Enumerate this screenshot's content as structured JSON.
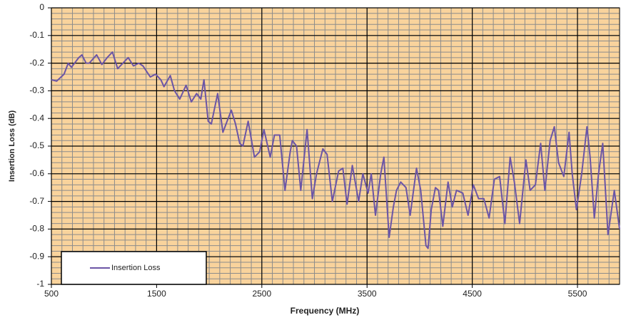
{
  "chart_data": {
    "type": "line",
    "x_label": "Frequency (MHz)",
    "y_label": "Insertion Loss (dB)",
    "xlim": [
      500,
      5900
    ],
    "xticks": [
      500,
      1500,
      2500,
      3500,
      4500,
      5500
    ],
    "ylim": [
      -1,
      0
    ],
    "yticks": [
      -1,
      -0.9,
      -0.8,
      -0.7,
      -0.6,
      -0.5,
      -0.4,
      -0.3,
      -0.2,
      -0.1,
      0
    ],
    "grid": true,
    "plot_background": "#f9d39c",
    "legend": "lower left",
    "x": [
      500,
      550,
      620,
      660,
      690,
      760,
      790,
      830,
      860,
      930,
      980,
      1030,
      1080,
      1130,
      1180,
      1230,
      1280,
      1330,
      1370,
      1440,
      1490,
      1540,
      1570,
      1630,
      1670,
      1720,
      1780,
      1830,
      1880,
      1920,
      1950,
      1990,
      2020,
      2080,
      2130,
      2170,
      2210,
      2250,
      2290,
      2320,
      2370,
      2430,
      2480,
      2520,
      2580,
      2620,
      2670,
      2720,
      2770,
      2790,
      2830,
      2870,
      2930,
      2980,
      3020,
      3080,
      3120,
      3170,
      3230,
      3270,
      3310,
      3360,
      3420,
      3460,
      3510,
      3540,
      3580,
      3630,
      3660,
      3710,
      3750,
      3780,
      3820,
      3870,
      3910,
      3970,
      4010,
      4060,
      4080,
      4110,
      4150,
      4180,
      4220,
      4270,
      4310,
      4350,
      4410,
      4460,
      4510,
      4560,
      4610,
      4660,
      4710,
      4760,
      4810,
      4860,
      4900,
      4950,
      5010,
      5050,
      5100,
      5150,
      5190,
      5240,
      5280,
      5320,
      5370,
      5420,
      5450,
      5490,
      5540,
      5590,
      5620,
      5660,
      5700,
      5740,
      5790,
      5850,
      5900
    ],
    "series": [
      {
        "name": "Insertion Loss",
        "color": "#6b55a6",
        "values": [
          -0.26,
          -0.265,
          -0.24,
          -0.2,
          -0.215,
          -0.18,
          -0.17,
          -0.2,
          -0.2,
          -0.17,
          -0.205,
          -0.18,
          -0.16,
          -0.22,
          -0.2,
          -0.18,
          -0.21,
          -0.2,
          -0.21,
          -0.25,
          -0.24,
          -0.26,
          -0.285,
          -0.245,
          -0.3,
          -0.33,
          -0.28,
          -0.34,
          -0.31,
          -0.33,
          -0.26,
          -0.41,
          -0.42,
          -0.31,
          -0.45,
          -0.41,
          -0.37,
          -0.42,
          -0.49,
          -0.5,
          -0.41,
          -0.54,
          -0.52,
          -0.44,
          -0.54,
          -0.46,
          -0.46,
          -0.66,
          -0.52,
          -0.48,
          -0.5,
          -0.66,
          -0.44,
          -0.69,
          -0.6,
          -0.51,
          -0.53,
          -0.7,
          -0.59,
          -0.58,
          -0.71,
          -0.57,
          -0.7,
          -0.6,
          -0.67,
          -0.6,
          -0.75,
          -0.6,
          -0.54,
          -0.83,
          -0.72,
          -0.66,
          -0.63,
          -0.65,
          -0.75,
          -0.58,
          -0.66,
          -0.86,
          -0.87,
          -0.73,
          -0.65,
          -0.66,
          -0.79,
          -0.63,
          -0.72,
          -0.66,
          -0.67,
          -0.75,
          -0.64,
          -0.69,
          -0.69,
          -0.76,
          -0.62,
          -0.61,
          -0.78,
          -0.54,
          -0.63,
          -0.78,
          -0.55,
          -0.66,
          -0.64,
          -0.49,
          -0.66,
          -0.48,
          -0.43,
          -0.56,
          -0.61,
          -0.45,
          -0.6,
          -0.73,
          -0.6,
          -0.43,
          -0.54,
          -0.76,
          -0.6,
          -0.49,
          -0.82,
          -0.66,
          -0.8
        ]
      }
    ]
  }
}
